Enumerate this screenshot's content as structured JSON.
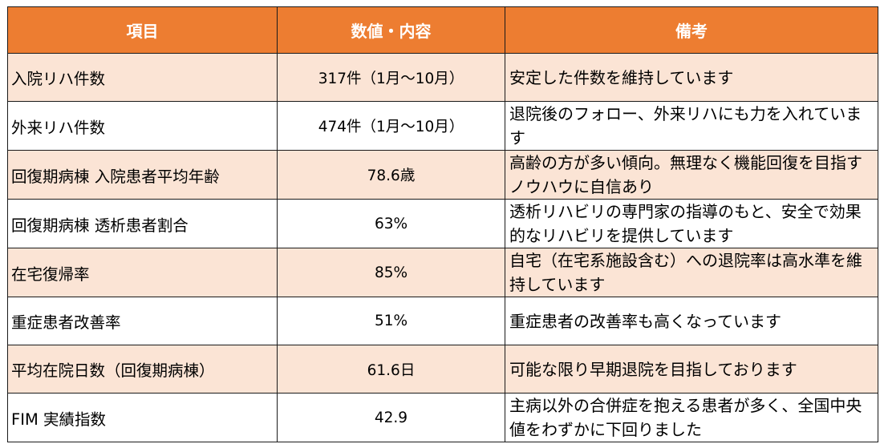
{
  "table": {
    "headers": {
      "item": "項目",
      "value": "数値・内容",
      "note": "備考"
    },
    "rows": [
      {
        "item": "入院リハ件数",
        "value": "317件（1月～10月）",
        "note": "安定した件数を維持しています"
      },
      {
        "item": "外来リハ件数",
        "value": "474件（1月～10月）",
        "note": "退院後のフォロー、外来リハにも力を入れています"
      },
      {
        "item": "回復期病棟 入院患者平均年齢",
        "value": "78.6歳",
        "note": "高齢の方が多い傾向。無理なく機能回復を目指すノウハウに自信あり"
      },
      {
        "item": "回復期病棟 透析患者割合",
        "value": "63%",
        "note": "透析リハビリの専門家の指導のもと、安全で効果的なリハビリを提供しています"
      },
      {
        "item": "在宅復帰率",
        "value": "85%",
        "note": "自宅（在宅系施設含む）への退院率は高水準を維持しています"
      },
      {
        "item": "重症患者改善率",
        "value": "51%",
        "note": "重症患者の改善率も高くなっています"
      },
      {
        "item": "平均在院日数（回復期病棟）",
        "value": "61.6日",
        "note": "可能な限り早期退院を目指しております"
      },
      {
        "item": "FIM 実績指数",
        "value": "42.9",
        "note": "主病以外の合併症を抱える患者が多く、全国中央値をわずかに下回りました"
      }
    ]
  }
}
